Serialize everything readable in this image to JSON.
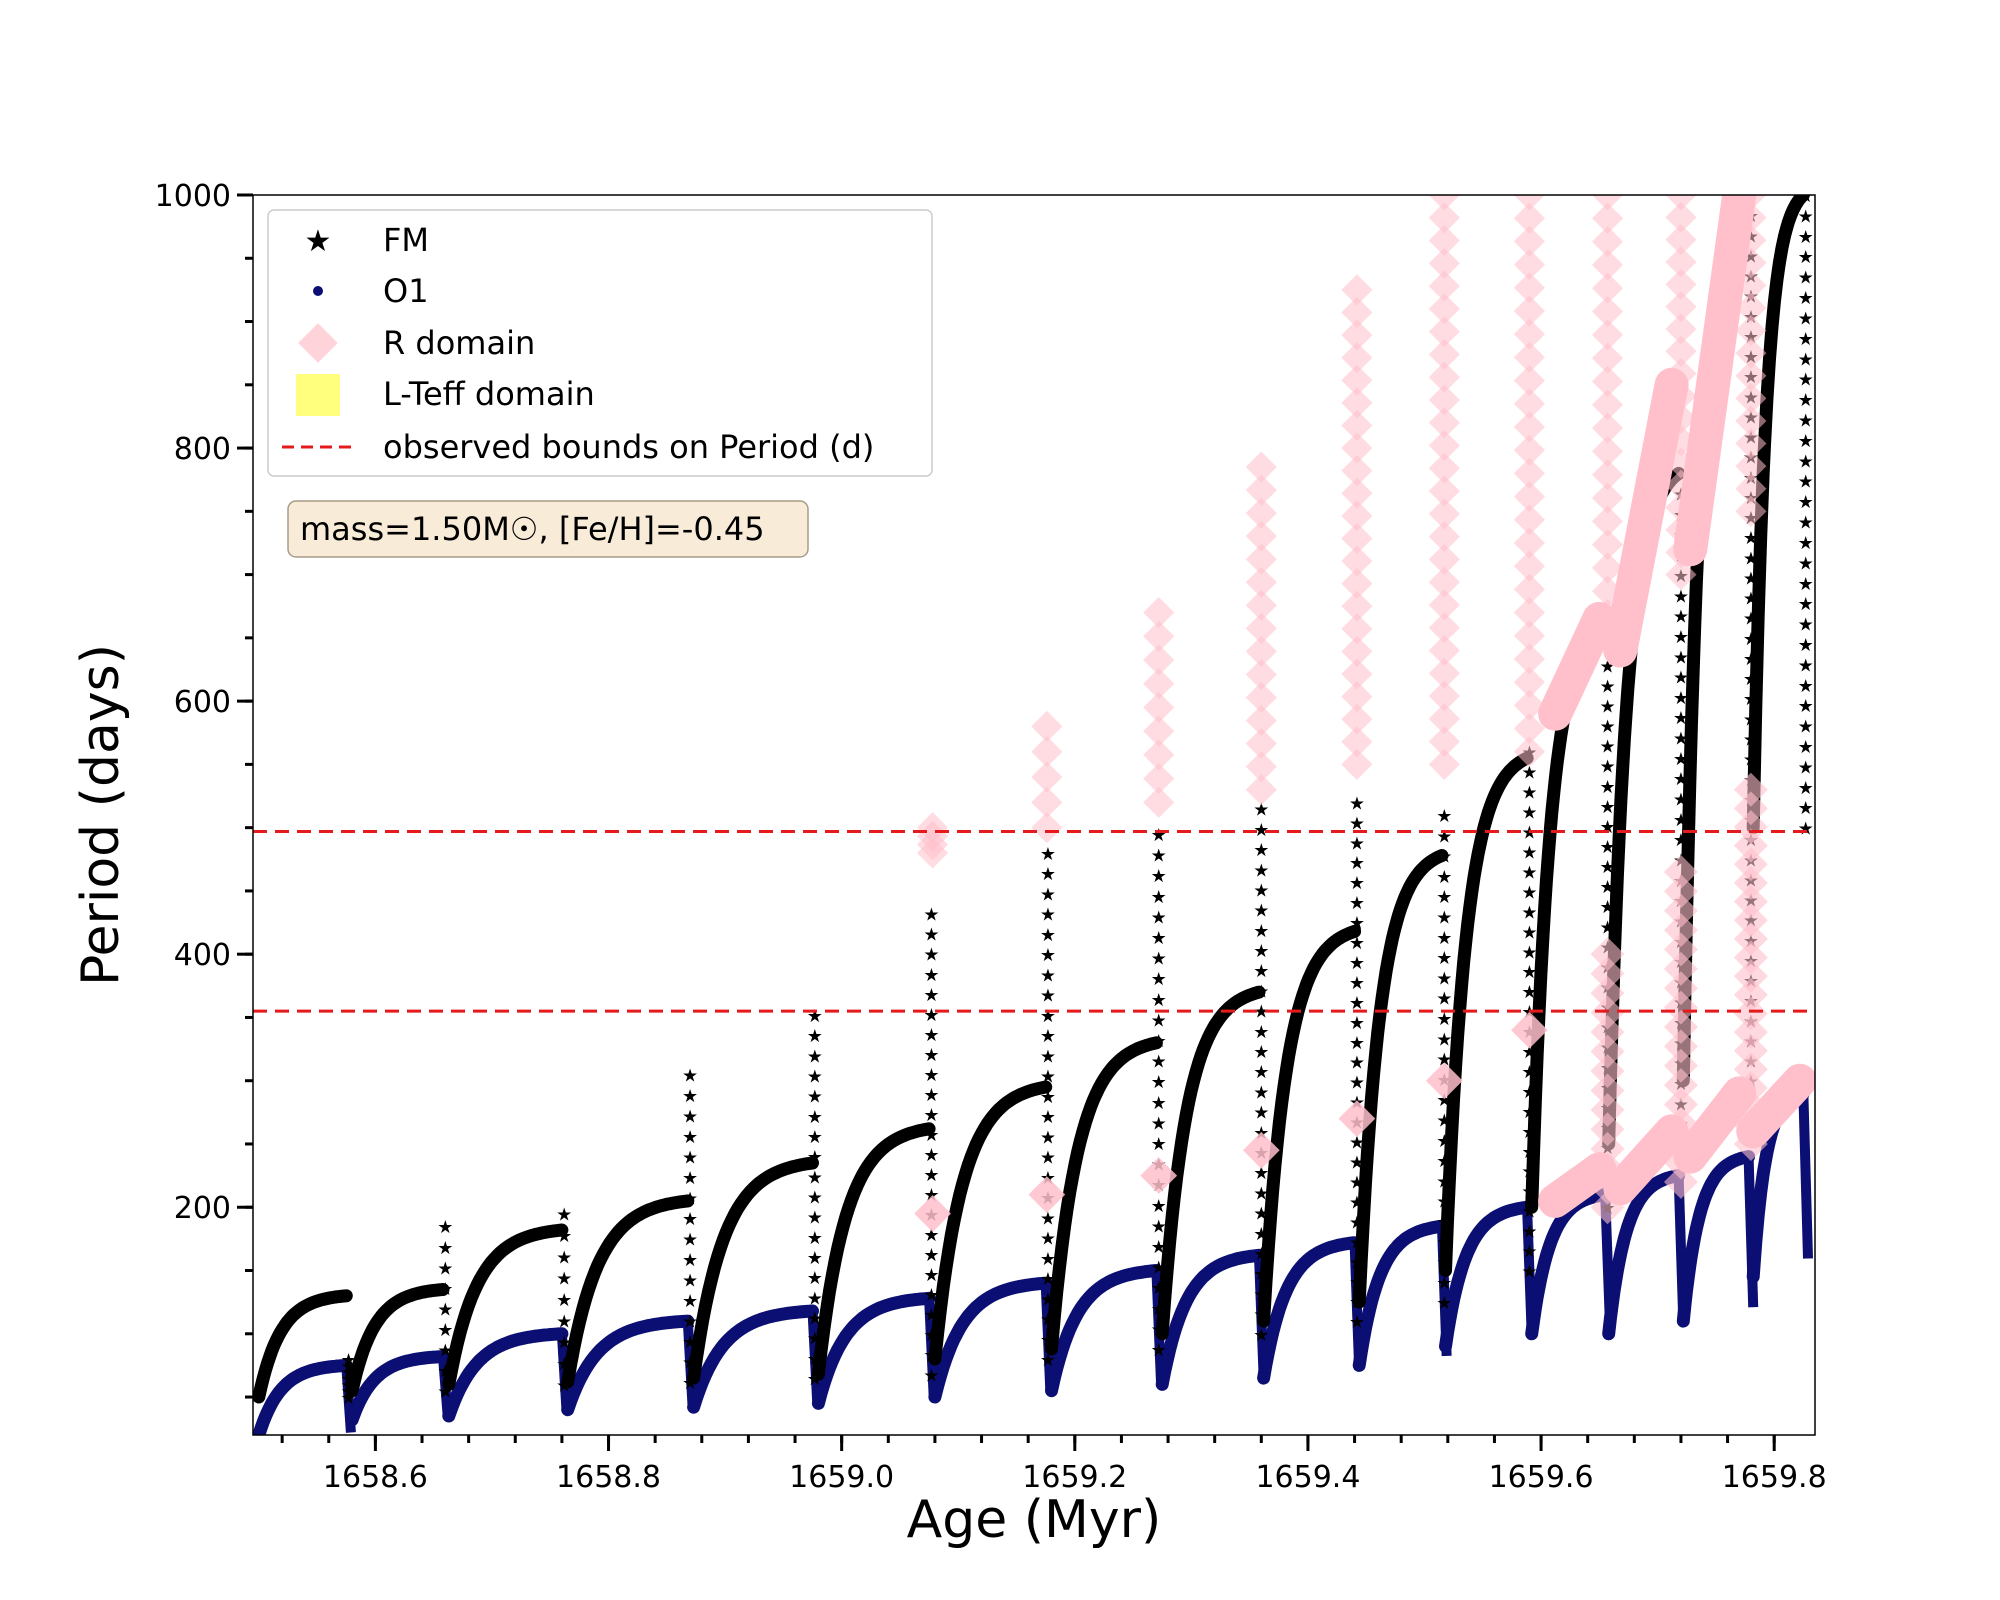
{
  "chart_data": {
    "type": "scatter",
    "xlabel": "Age (Myr)",
    "ylabel": "Period (days)",
    "xlim": [
      1658.495,
      1659.835
    ],
    "ylim": [
      20,
      1000
    ],
    "x_ticks": [
      1658.6,
      1658.8,
      1659.0,
      1659.2,
      1659.4,
      1659.6,
      1659.8
    ],
    "x_tick_labels": [
      "1658.6",
      "1658.8",
      "1659.0",
      "1659.2",
      "1659.4",
      "1659.6",
      "1659.8"
    ],
    "x_minor_step": 0.04,
    "y_ticks": [
      200,
      400,
      600,
      800,
      1000
    ],
    "y_tick_labels": [
      "200",
      "400",
      "600",
      "800",
      "1000"
    ],
    "y_minor_step": 50,
    "grid": false,
    "legend_position": "upper-left",
    "annotation": "mass=1.50M☉, [Fe/H]=-0.45",
    "hlines": [
      {
        "y": 355,
        "name": "observed bounds on Period (d)",
        "color": "#e41a1c",
        "style": "dashed"
      },
      {
        "y": 497,
        "name": "observed bounds on Period (d)",
        "color": "#e41a1c",
        "style": "dashed"
      }
    ],
    "series": [
      {
        "name": "FM",
        "marker": "star",
        "color": "#000000"
      },
      {
        "name": "O1",
        "marker": "dot",
        "color": "#0b0f73"
      },
      {
        "name": "R domain",
        "marker": "diamond",
        "color": "#ffc0cb"
      },
      {
        "name": "L-Teff domain",
        "marker": "square",
        "color": "#ffff66"
      },
      {
        "name": "observed bounds on Period (d)",
        "marker": "dashed-line",
        "color": "#e41a1c"
      }
    ],
    "pulses": [
      {
        "t0": 1658.5,
        "t1": 1658.575,
        "fm_start": 50,
        "fm_end": 130,
        "fm_spike": 80,
        "o1_start": 20,
        "o1_end": 75
      },
      {
        "t0": 1658.58,
        "t1": 1658.658,
        "fm_start": 55,
        "fm_end": 135,
        "fm_spike": 185,
        "o1_start": 32,
        "o1_end": 82
      },
      {
        "t0": 1658.663,
        "t1": 1658.76,
        "fm_start": 60,
        "fm_end": 182,
        "fm_spike": 195,
        "o1_start": 35,
        "o1_end": 100
      },
      {
        "t0": 1658.765,
        "t1": 1658.868,
        "fm_start": 62,
        "fm_end": 205,
        "fm_spike": 305,
        "o1_start": 40,
        "o1_end": 110
      },
      {
        "t0": 1658.873,
        "t1": 1658.975,
        "fm_start": 65,
        "fm_end": 235,
        "fm_spike": 352,
        "o1_start": 42,
        "o1_end": 118
      },
      {
        "t0": 1658.98,
        "t1": 1659.075,
        "fm_start": 68,
        "fm_end": 262,
        "fm_spike": 432,
        "o1_start": 45,
        "o1_end": 128
      },
      {
        "t0": 1659.08,
        "t1": 1659.175,
        "fm_start": 80,
        "fm_end": 295,
        "fm_spike": 480,
        "o1_start": 50,
        "o1_end": 140
      },
      {
        "t0": 1659.18,
        "t1": 1659.27,
        "fm_start": 88,
        "fm_end": 330,
        "fm_spike": 495,
        "o1_start": 55,
        "o1_end": 150
      },
      {
        "t0": 1659.275,
        "t1": 1659.358,
        "fm_start": 100,
        "fm_end": 370,
        "fm_spike": 515,
        "o1_start": 60,
        "o1_end": 162
      },
      {
        "t0": 1659.362,
        "t1": 1659.44,
        "fm_start": 110,
        "fm_end": 418,
        "fm_spike": 520,
        "o1_start": 65,
        "o1_end": 172
      },
      {
        "t0": 1659.444,
        "t1": 1659.515,
        "fm_start": 125,
        "fm_end": 478,
        "fm_spike": 510,
        "o1_start": 75,
        "o1_end": 185
      },
      {
        "t0": 1659.518,
        "t1": 1659.588,
        "fm_start": 150,
        "fm_end": 555,
        "fm_spike": 560,
        "o1_start": 90,
        "o1_end": 200
      },
      {
        "t0": 1659.592,
        "t1": 1659.655,
        "fm_start": 200,
        "fm_end": 660,
        "fm_spike": 660,
        "o1_start": 100,
        "o1_end": 210
      },
      {
        "t0": 1659.658,
        "t1": 1659.718,
        "fm_start": 250,
        "fm_end": 780,
        "fm_spike": 780,
        "o1_start": 100,
        "o1_end": 225
      },
      {
        "t0": 1659.722,
        "t1": 1659.778,
        "fm_start": 300,
        "fm_end": 1000,
        "fm_spike": 1000,
        "o1_start": 110,
        "o1_end": 240
      },
      {
        "t0": 1659.782,
        "t1": 1659.825,
        "fm_start": 500,
        "fm_end": 1000,
        "fm_spike": 1000,
        "o1_start": 145,
        "o1_end": 290
      }
    ],
    "r_domain_columns": [
      {
        "x": 1659.078,
        "y0": 480,
        "y1": 500
      },
      {
        "x": 1659.176,
        "y0": 500,
        "y1": 580
      },
      {
        "x": 1659.272,
        "y0": 520,
        "y1": 670
      },
      {
        "x": 1659.36,
        "y0": 530,
        "y1": 785
      },
      {
        "x": 1659.442,
        "y0": 550,
        "y1": 925
      },
      {
        "x": 1659.517,
        "y0": 550,
        "y1": 1000
      },
      {
        "x": 1659.59,
        "y0": 560,
        "y1": 1000
      },
      {
        "x": 1659.657,
        "y0": 650,
        "y1": 1000
      },
      {
        "x": 1659.72,
        "y0": 700,
        "y1": 1000
      },
      {
        "x": 1659.78,
        "y0": 750,
        "y1": 1000
      }
    ],
    "r_domain_markers": [
      {
        "x": 1659.078,
        "y": 195
      },
      {
        "x": 1659.176,
        "y": 210
      },
      {
        "x": 1659.272,
        "y": 225
      },
      {
        "x": 1659.36,
        "y": 245
      },
      {
        "x": 1659.442,
        "y": 270
      },
      {
        "x": 1659.517,
        "y": 300
      },
      {
        "x": 1659.59,
        "y": 340
      }
    ],
    "r_domain_late": [
      {
        "x0": 1659.612,
        "x1": 1659.65,
        "y0": 590,
        "y1": 665
      },
      {
        "x0": 1659.668,
        "x1": 1659.712,
        "y0": 640,
        "y1": 850
      },
      {
        "x0": 1659.728,
        "x1": 1659.77,
        "y0": 720,
        "y1": 1000
      },
      {
        "x0": 1659.612,
        "x1": 1659.65,
        "y0": 205,
        "y1": 230
      },
      {
        "x0": 1659.668,
        "x1": 1659.712,
        "y0": 215,
        "y1": 260
      },
      {
        "x0": 1659.728,
        "x1": 1659.77,
        "y0": 240,
        "y1": 290
      },
      {
        "x0": 1659.782,
        "x1": 1659.822,
        "y0": 260,
        "y1": 300
      }
    ],
    "r_domain_late_columns": [
      {
        "x": 1659.657,
        "y0": 200,
        "y1": 400
      },
      {
        "x": 1659.72,
        "y0": 220,
        "y1": 465
      },
      {
        "x": 1659.78,
        "y0": 250,
        "y1": 530
      }
    ]
  }
}
